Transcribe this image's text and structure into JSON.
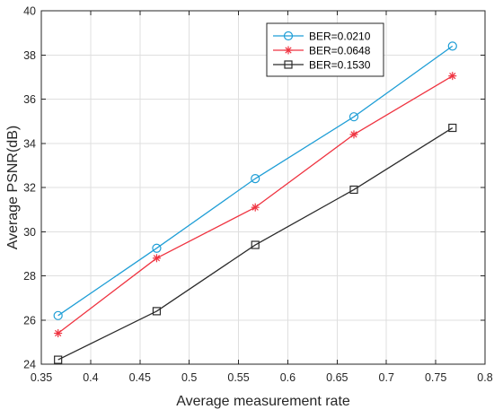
{
  "chart_data": {
    "type": "line",
    "xlabel": "Average measurement rate",
    "ylabel": "Average PSNR(dB)",
    "xlim": [
      0.35,
      0.8
    ],
    "ylim": [
      24,
      40
    ],
    "xticks": [
      0.35,
      0.4,
      0.45,
      0.5,
      0.55,
      0.6,
      0.65,
      0.7,
      0.75,
      0.8
    ],
    "yticks": [
      24,
      26,
      28,
      30,
      32,
      34,
      36,
      38,
      40
    ],
    "grid": true,
    "legend_position": "top-right",
    "x": [
      0.367,
      0.467,
      0.567,
      0.667,
      0.767
    ],
    "series": [
      {
        "name": "BER=0.0210",
        "color": "#1f9ed6",
        "marker": "circle",
        "values": [
          26.2,
          29.25,
          32.4,
          35.2,
          38.4
        ]
      },
      {
        "name": "BER=0.0648",
        "color": "#ef3340",
        "marker": "asterisk",
        "values": [
          25.4,
          28.8,
          31.1,
          34.4,
          37.05
        ]
      },
      {
        "name": "BER=0.1530",
        "color": "#2b2b2b",
        "marker": "square",
        "values": [
          24.2,
          26.4,
          29.4,
          31.9,
          34.7
        ]
      }
    ]
  }
}
